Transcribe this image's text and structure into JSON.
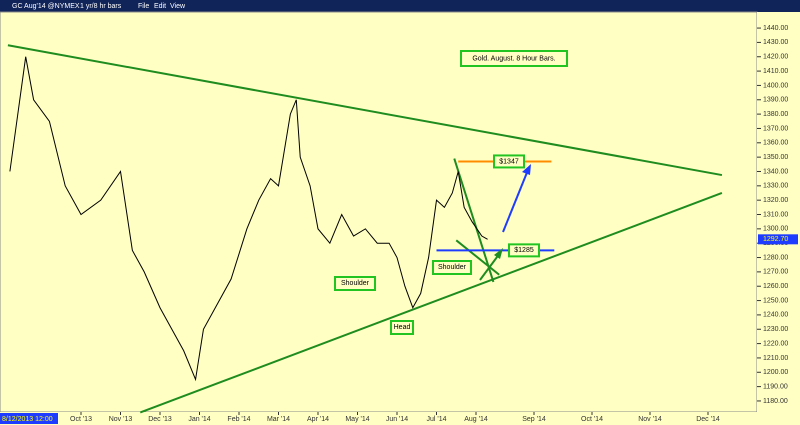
{
  "toolbar": {
    "symbol": "GC Aug'14 @NYMEX",
    "period": "1 yr/8 hr bars",
    "menu": [
      "File",
      "Edit",
      "View"
    ]
  },
  "chart_data": {
    "type": "line",
    "title": "Gold. August. 8 Hour Bars.",
    "start_label": "8/12/2013 12:00",
    "x": [
      0.2,
      0.6,
      0.8,
      1.2,
      1.6,
      2.0,
      2.5,
      3.0,
      3.3,
      3.6,
      4.0,
      4.3,
      4.6,
      4.9,
      5.1,
      5.4,
      5.8,
      6.2,
      6.5,
      6.8,
      7.0,
      7.3,
      7.45,
      7.55,
      7.8,
      8.0,
      8.3,
      8.6,
      8.9,
      9.2,
      9.5,
      9.8,
      10.0,
      10.2,
      10.4,
      10.6,
      10.8,
      11.0,
      11.2,
      11.4,
      11.55,
      11.7,
      11.9,
      12.1,
      12.2
    ],
    "series": [
      {
        "name": "GC Aug'14",
        "color": "#000000",
        "values": [
          1340,
          1420,
          1390,
          1375,
          1330,
          1310,
          1320,
          1340,
          1285,
          1270,
          1245,
          1230,
          1215,
          1195,
          1230,
          1245,
          1265,
          1300,
          1320,
          1335,
          1330,
          1380,
          1390,
          1350,
          1330,
          1300,
          1290,
          1310,
          1295,
          1300,
          1290,
          1290,
          1280,
          1260,
          1245,
          1255,
          1280,
          1320,
          1315,
          1325,
          1340,
          1315,
          1305,
          1295,
          1292.7
        ]
      }
    ],
    "last_price": {
      "value": 1292.7,
      "label": "1292.70"
    },
    "ylim": [
      1172.3,
      1451.2
    ],
    "yticks": [
      {
        "value": 1180,
        "label": "1180.00"
      },
      {
        "value": 1190,
        "label": "1190.00"
      },
      {
        "value": 1200,
        "label": "1200.00"
      },
      {
        "value": 1210,
        "label": "1210.00"
      },
      {
        "value": 1220,
        "label": "1220.00"
      },
      {
        "value": 1230,
        "label": "1230.00"
      },
      {
        "value": 1240,
        "label": "1240.00"
      },
      {
        "value": 1250,
        "label": "1250.00"
      },
      {
        "value": 1260,
        "label": "1260.00"
      },
      {
        "value": 1270,
        "label": "1270.00"
      },
      {
        "value": 1280,
        "label": "1280.00"
      },
      {
        "value": 1290,
        "label": "1290.00"
      },
      {
        "value": 1300,
        "label": "1300.00"
      },
      {
        "value": 1310,
        "label": "1310.00"
      },
      {
        "value": 1320,
        "label": "1320.00"
      },
      {
        "value": 1330,
        "label": "1330.00"
      },
      {
        "value": 1340,
        "label": "1340.00"
      },
      {
        "value": 1350,
        "label": "1350.00"
      },
      {
        "value": 1360,
        "label": "1360.00"
      },
      {
        "value": 1370,
        "label": "1370.00"
      },
      {
        "value": 1380,
        "label": "1380.00"
      },
      {
        "value": 1390,
        "label": "1390.00"
      },
      {
        "value": 1400,
        "label": "1400.00"
      },
      {
        "value": 1410,
        "label": "1410.00"
      },
      {
        "value": 1420,
        "label": "1420.00"
      },
      {
        "value": 1430,
        "label": "1430.00"
      },
      {
        "value": 1440,
        "label": "1440.00"
      }
    ],
    "xticks": [
      {
        "value": 2,
        "label": "Oct '13"
      },
      {
        "value": 3,
        "label": "Nov '13"
      },
      {
        "value": 4,
        "label": "Dec '13"
      },
      {
        "value": 5,
        "label": "Jan '14"
      },
      {
        "value": 6,
        "label": "Feb '14"
      },
      {
        "value": 7,
        "label": "Mar '14"
      },
      {
        "value": 8,
        "label": "Apr '14"
      },
      {
        "value": 9,
        "label": "May '14"
      },
      {
        "value": 10,
        "label": "Jun '14"
      },
      {
        "value": 11,
        "label": "Jul '14"
      },
      {
        "value": 12,
        "label": "Aug '14"
      },
      {
        "value": 13,
        "label": "Sep '14"
      },
      {
        "value": 14,
        "label": "Oct '14"
      },
      {
        "value": 15,
        "label": "Nov '14"
      },
      {
        "value": 16,
        "label": "Dec '14"
      }
    ],
    "trendlines": [
      {
        "color": "#1e8c1e",
        "x": [
          0.15,
          16.24
        ],
        "y": [
          1428,
          1337.5
        ]
      },
      {
        "color": "#1e8c1e",
        "x": [
          3.5,
          16.24
        ],
        "y": [
          1172,
          1325
        ]
      },
      {
        "color": "#1e8c1e",
        "x": [
          11.45,
          12.3
        ],
        "y": [
          1349,
          1263
        ]
      },
      {
        "color": "#1e8c1e",
        "x": [
          11.5,
          12.4
        ],
        "y": [
          1292,
          1268
        ]
      }
    ],
    "levels": [
      {
        "value": 1347,
        "label": "$1347",
        "color": "#ff8c00",
        "x": [
          11.55,
          13.3
        ]
      },
      {
        "value": 1285,
        "label": "$1285",
        "color": "#1e3cff",
        "x": [
          11.0,
          13.35
        ]
      }
    ],
    "annotations": [
      "Shoulder",
      "Head",
      "Shoulder"
    ]
  }
}
